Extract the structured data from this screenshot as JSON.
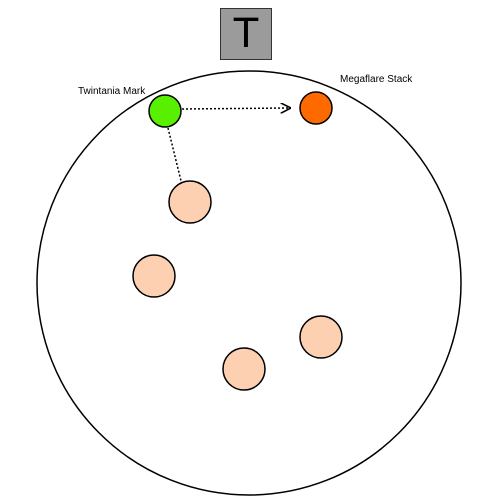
{
  "marker": {
    "letter": "T",
    "color": "#9b9b9b"
  },
  "labels": {
    "twintania_mark": "Twintania Mark",
    "megaflare_stack": "Megaflare Stack"
  },
  "colors": {
    "arena_border": "#000000",
    "twintania_mark": "#58f000",
    "megaflare_stack": "#ff6a00",
    "party_member": "#fdd0b1",
    "arrow": "#000000"
  },
  "party": {
    "count": 4
  },
  "arrows": [
    {
      "from": "Twintania Mark",
      "to": "Megaflare Stack",
      "style": "dotted"
    },
    {
      "from": "Twintania Mark",
      "to": "party member",
      "style": "dotted"
    }
  ]
}
